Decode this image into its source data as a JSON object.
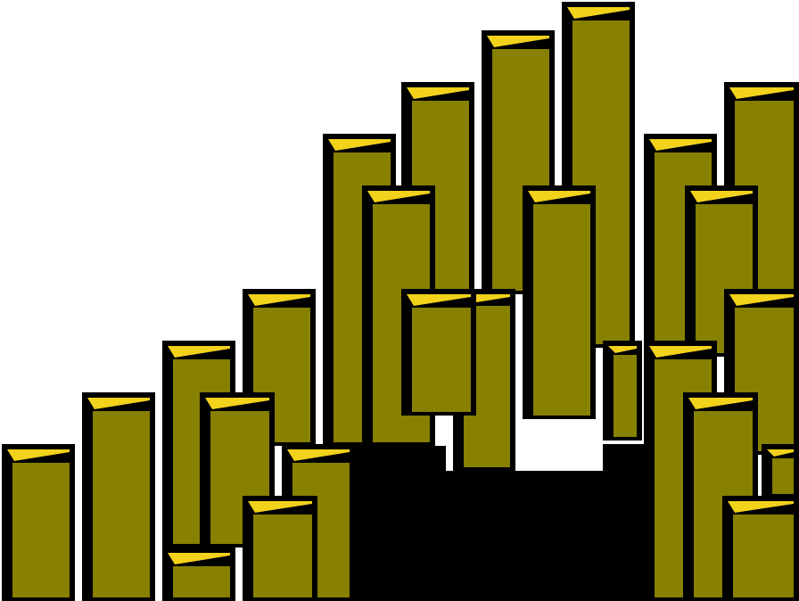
{
  "scene": {
    "name": "isometric-pillar-staircase",
    "palette": {
      "background": "#ffffff",
      "pillar_face": "#878000",
      "pillar_top": "#f2d21b",
      "outline": "#000000"
    },
    "pillar_count": 29
  }
}
